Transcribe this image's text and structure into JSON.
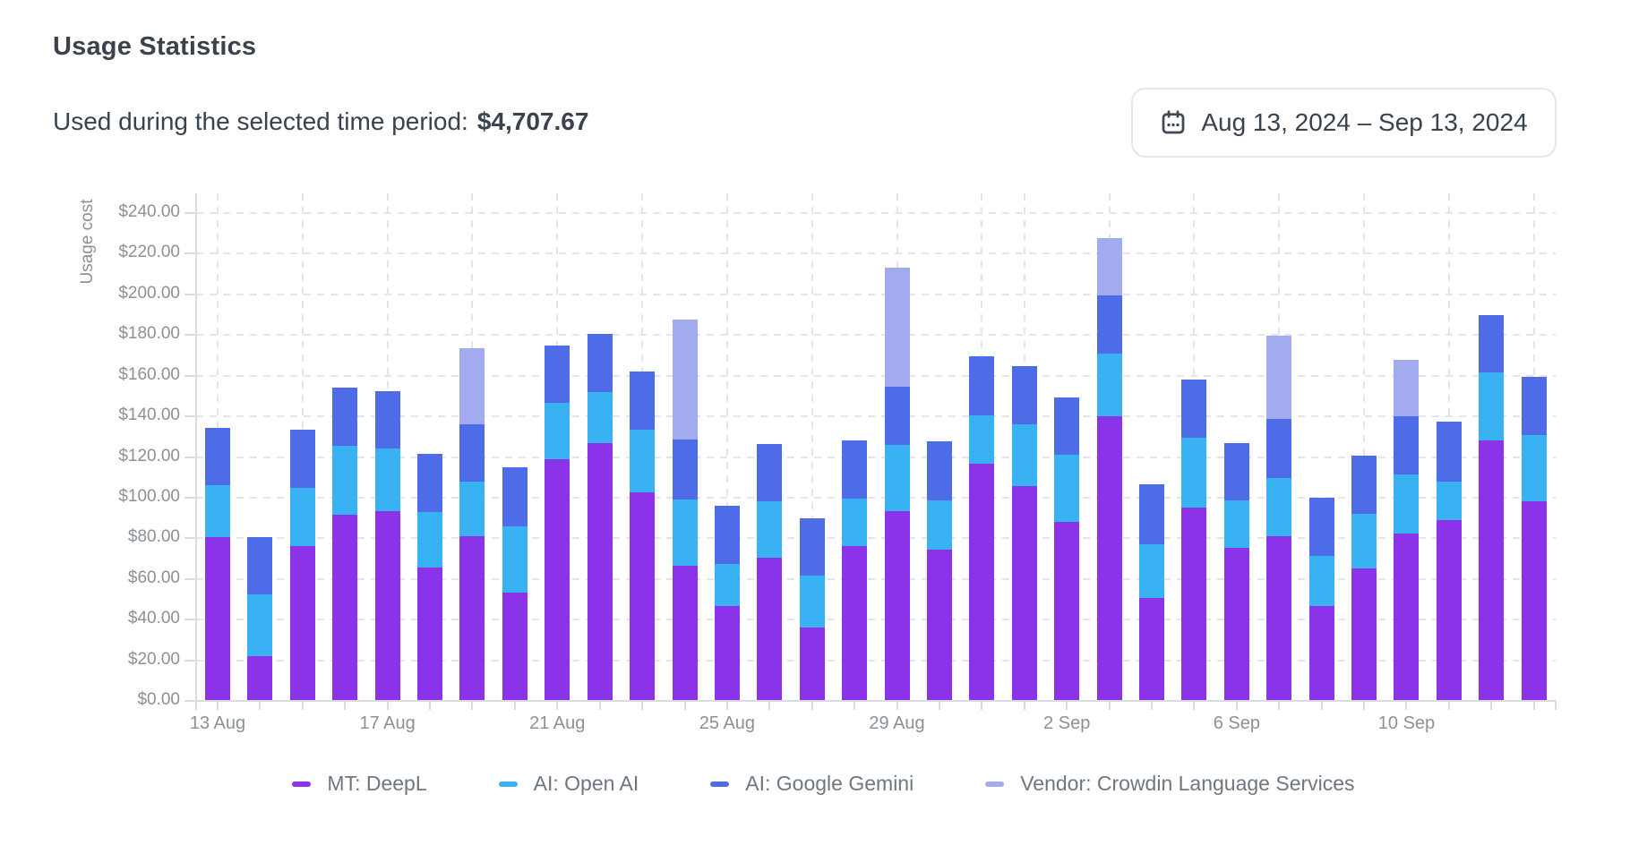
{
  "page": {
    "title": "Usage Statistics",
    "subtitle_label": "Used during the selected time period:",
    "total_amount": "$4,707.67",
    "date_range": "Aug 13, 2024 – Sep 13, 2024"
  },
  "chart_data": {
    "type": "bar",
    "stacked": true,
    "ylabel": "Usage cost",
    "y_tick_format": "currency_usd",
    "y_ticks": [
      0,
      20,
      40,
      60,
      80,
      100,
      120,
      140,
      160,
      180,
      200,
      220,
      240
    ],
    "ylim": [
      0,
      250
    ],
    "grid": true,
    "legend_position": "bottom",
    "x_label_every": 4,
    "x_tick_labels_shown": [
      "13 Aug",
      "17 Aug",
      "21 Aug",
      "25 Aug",
      "29 Aug",
      "2 Sep",
      "6 Sep",
      "10 Sep"
    ],
    "categories": [
      "13 Aug",
      "14 Aug",
      "15 Aug",
      "16 Aug",
      "17 Aug",
      "18 Aug",
      "19 Aug",
      "20 Aug",
      "21 Aug",
      "22 Aug",
      "23 Aug",
      "24 Aug",
      "25 Aug",
      "26 Aug",
      "27 Aug",
      "28 Aug",
      "29 Aug",
      "30 Aug",
      "31 Aug",
      "1 Sep",
      "2 Sep",
      "3 Sep",
      "4 Sep",
      "5 Sep",
      "6 Sep",
      "7 Sep",
      "8 Sep",
      "9 Sep",
      "10 Sep",
      "11 Sep",
      "12 Sep",
      "13 Sep"
    ],
    "series": [
      {
        "key": "deepl",
        "name": "MT: DeepL",
        "color": "#8A33E8",
        "values": [
          80.5,
          22,
          76,
          91.5,
          93.5,
          65.5,
          81,
          53.5,
          119,
          127,
          102.5,
          66.5,
          46.5,
          70.5,
          36,
          76,
          93.5,
          74.5,
          116.5,
          105.5,
          88,
          140,
          50.5,
          95,
          75.5,
          81,
          46.5,
          65,
          82.5,
          89,
          128,
          98
        ]
      },
      {
        "key": "openai",
        "name": "AI: Open AI",
        "color": "#38B2F3",
        "values": [
          25.5,
          30.5,
          29,
          34,
          30.5,
          27.5,
          27,
          32.5,
          27.5,
          25,
          31,
          32.5,
          21,
          27.5,
          25.5,
          23.5,
          32.5,
          24,
          24,
          30.5,
          33,
          31,
          26.5,
          34.5,
          23,
          28.5,
          25,
          27,
          29,
          19,
          33.5,
          33
        ]
      },
      {
        "key": "gemini",
        "name": "AI: Google Gemini",
        "color": "#4E6BE8",
        "values": [
          28.5,
          28,
          28.5,
          28.5,
          28.5,
          28.5,
          28,
          29,
          28.5,
          28.5,
          28.5,
          29.5,
          28.5,
          28.5,
          28.5,
          28.5,
          28.5,
          29,
          29,
          28.5,
          28.5,
          28.5,
          29.5,
          28.5,
          28.5,
          29,
          28.5,
          28.5,
          28.5,
          29.5,
          28.5,
          28.5
        ]
      },
      {
        "key": "vendor",
        "name": "Vendor: Crowdin Language Services",
        "color": "#A3ABEF",
        "values": [
          0,
          0,
          0,
          0,
          0,
          0,
          37.5,
          0,
          0,
          0,
          0,
          59,
          0,
          0,
          0,
          0,
          58.5,
          0,
          0,
          0,
          0,
          28,
          0,
          0,
          0,
          41,
          0,
          0,
          28,
          0,
          0,
          0
        ]
      }
    ]
  }
}
